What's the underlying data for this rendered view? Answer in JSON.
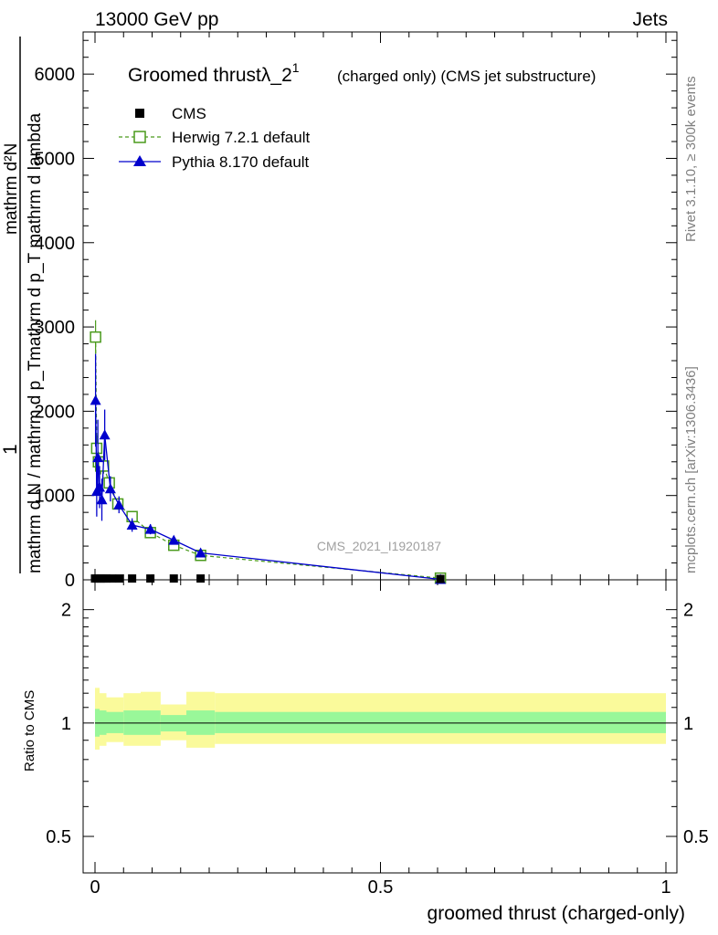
{
  "header": {
    "left": "13000 GeV pp",
    "right": "Jets"
  },
  "side_text": {
    "rivet": "Rivet 3.1.10, ≥ 300k events",
    "mcplots": "mcplots.cern.ch [arXiv:1306.3436]"
  },
  "plot_title": {
    "main": "Groomed thrustλ_2",
    "sup": "1",
    "tail": "(charged only) (CMS jet substructure)"
  },
  "watermark": "CMS_2021_I1920187",
  "colors": {
    "cms": "#000000",
    "herwig": "#4a9a1c",
    "pythia": "#0000cc",
    "band_inner": "#99f799",
    "band_outer": "#fafa9b"
  },
  "chart_data": [
    {
      "type": "line",
      "panel": "main",
      "ylabel_lines": [
        "1",
        "mathrm d N / mathrm d p",
        "mathrm d p",
        "mathrm d^{2}N",
        "mathrm d p_T mathrm d lambda",
        "mathrm d p_T mathrm d lambda"
      ],
      "ylabel_parts": {
        "top": "mathrm d²N",
        "top2": "mathrm d p_T mathrm d lambda",
        "one": "1",
        "bottom": "mathrm d N / mathrm d p_T"
      },
      "xlim": [
        0,
        1
      ],
      "ylim": [
        0,
        6500
      ],
      "yticks": [
        0,
        1000,
        2000,
        3000,
        4000,
        5000,
        6000
      ],
      "ytick_labels": [
        "0",
        "1000",
        "2000",
        "3000",
        "4000",
        "5000",
        "6000"
      ],
      "legend": [
        {
          "label": "CMS",
          "marker": "square-filled"
        },
        {
          "label": "Herwig 7.2.1 default",
          "marker": "square-open"
        },
        {
          "label": "Pythia 8.170 default",
          "marker": "triangle-filled"
        }
      ],
      "legend_position": "top-left",
      "series": [
        {
          "name": "CMS",
          "x": [
            0.0,
            0.005,
            0.01,
            0.015,
            0.02,
            0.03,
            0.043,
            0.065,
            0.097,
            0.138,
            0.185,
            0.605
          ],
          "y": [
            10,
            10,
            10,
            10,
            10,
            10,
            10,
            10,
            10,
            10,
            10,
            5
          ]
        },
        {
          "name": "Herwig 7.2.1 default",
          "x": [
            0.001,
            0.003,
            0.006,
            0.01,
            0.015,
            0.025,
            0.04,
            0.065,
            0.097,
            0.138,
            0.185,
            0.605
          ],
          "y": [
            2880,
            1560,
            1400,
            1350,
            1350,
            1150,
            900,
            750,
            560,
            410,
            290,
            20
          ],
          "yerr": [
            200,
            150,
            120,
            100,
            90,
            70,
            50,
            40,
            30,
            25,
            20,
            5
          ]
        },
        {
          "name": "Pythia 8.170 default",
          "x": [
            0.001,
            0.003,
            0.005,
            0.008,
            0.012,
            0.017,
            0.027,
            0.042,
            0.065,
            0.097,
            0.138,
            0.185,
            0.605
          ],
          "y": [
            2130,
            1050,
            1450,
            1100,
            950,
            1720,
            1080,
            890,
            650,
            600,
            470,
            320,
            5
          ],
          "yerr": [
            550,
            300,
            450,
            250,
            250,
            300,
            150,
            100,
            80,
            60,
            50,
            40,
            5
          ]
        }
      ]
    },
    {
      "type": "area",
      "panel": "ratio",
      "ylabel": "Ratio to CMS",
      "xlabel": "groomed thrust (charged-only)",
      "xlim": [
        0,
        1
      ],
      "ylim": [
        0.4,
        2.4
      ],
      "yscale": "log",
      "yticks": [
        0.5,
        1,
        2
      ],
      "ytick_labels": [
        "0.5",
        "1",
        "2"
      ],
      "xticks": [
        0,
        0.5,
        1
      ],
      "xtick_labels": [
        "0",
        "0.5",
        "1"
      ],
      "reference_line": 1,
      "bands": [
        {
          "x0": 0.0,
          "x1": 0.008,
          "inner": [
            0.92,
            1.09
          ],
          "outer": [
            0.85,
            1.24
          ]
        },
        {
          "x0": 0.008,
          "x1": 0.02,
          "inner": [
            0.93,
            1.08
          ],
          "outer": [
            0.87,
            1.2
          ]
        },
        {
          "x0": 0.02,
          "x1": 0.05,
          "inner": [
            0.94,
            1.07
          ],
          "outer": [
            0.89,
            1.17
          ]
        },
        {
          "x0": 0.05,
          "x1": 0.08,
          "inner": [
            0.93,
            1.08
          ],
          "outer": [
            0.87,
            1.2
          ]
        },
        {
          "x0": 0.08,
          "x1": 0.115,
          "inner": [
            0.93,
            1.08
          ],
          "outer": [
            0.87,
            1.21
          ]
        },
        {
          "x0": 0.115,
          "x1": 0.16,
          "inner": [
            0.95,
            1.05
          ],
          "outer": [
            0.9,
            1.12
          ]
        },
        {
          "x0": 0.16,
          "x1": 0.21,
          "inner": [
            0.93,
            1.08
          ],
          "outer": [
            0.86,
            1.21
          ]
        },
        {
          "x0": 0.21,
          "x1": 1.0,
          "inner": [
            0.94,
            1.07
          ],
          "outer": [
            0.88,
            1.2
          ]
        }
      ]
    }
  ]
}
